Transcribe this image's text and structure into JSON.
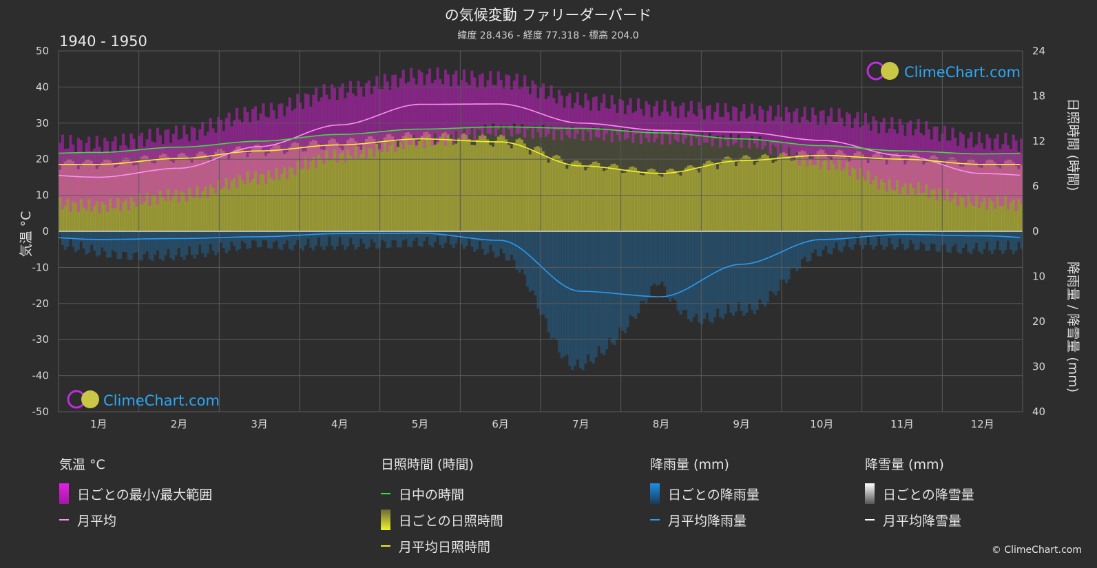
{
  "title": "の気候変動 ファリーダーバード",
  "subtitle": "緯度 28.436 - 経度 77.318 - 標高 204.0",
  "period": "1940 - 1950",
  "axes": {
    "left_label": "気温 °C",
    "right_top_label": "日照時間 (時間)",
    "right_bottom_label": "降雨量 / 降雪量 (mm)",
    "left_ticks": [
      "50",
      "40",
      "30",
      "20",
      "10",
      "0",
      "-10",
      "-20",
      "-30",
      "-40",
      "-50"
    ],
    "right_top_ticks": [
      "24",
      "18",
      "12",
      "6",
      "0"
    ],
    "right_bottom_ticks": [
      "10",
      "20",
      "30",
      "40"
    ]
  },
  "months": [
    "1月",
    "2月",
    "3月",
    "4月",
    "5月",
    "6月",
    "7月",
    "8月",
    "9月",
    "10月",
    "11月",
    "12月"
  ],
  "logo_text": "ClimeChart.com",
  "copyright": "© ClimeChart.com",
  "colors": {
    "background": "#2d2d2d",
    "temp_range": "#e51fe5",
    "temp_avg": "#ff8ff0",
    "daylight": "#3ddc3d",
    "sunshine_fill": "#b5b53a",
    "sunshine_avg": "#f2f22a",
    "rain": "#1e8ee6",
    "rain_avg": "#2b9af0",
    "snow": "#ffffff",
    "accent": "#2ba8f5"
  },
  "legend": {
    "temp": {
      "header": "気温 °C",
      "items": [
        "日ごとの最小/最大範囲",
        "月平均"
      ]
    },
    "sun": {
      "header": "日照時間 (時間)",
      "items": [
        "日中の時間",
        "日ごとの日照時間",
        "月平均日照時間"
      ]
    },
    "rain": {
      "header": "降雨量 (mm)",
      "items": [
        "日ごとの降雨量",
        "月平均降雨量"
      ]
    },
    "snow": {
      "header": "降雪量 (mm)",
      "items": [
        "日ごとの降雪量",
        "月平均降雪量"
      ]
    }
  },
  "chart_data": {
    "type": "area",
    "categories": [
      "1月",
      "2月",
      "3月",
      "4月",
      "5月",
      "6月",
      "7月",
      "8月",
      "9月",
      "10月",
      "11月",
      "12月"
    ],
    "temp_ylim": [
      -50,
      50
    ],
    "sun_ylim": [
      0,
      24
    ],
    "precip_ylim": [
      0,
      40
    ],
    "series": [
      {
        "name": "日ごとの最小/最大範囲 (最大)",
        "values": [
          24,
          27,
          33,
          39,
          43,
          42,
          36,
          34,
          33,
          32,
          29,
          25
        ]
      },
      {
        "name": "日ごとの最小/最大範囲 (最小)",
        "values": [
          7,
          10,
          15,
          21,
          25,
          28,
          27,
          26,
          25,
          19,
          12,
          8
        ]
      },
      {
        "name": "月平均",
        "values": [
          15,
          17.5,
          23.5,
          29.5,
          35.2,
          35.3,
          30,
          28,
          27.5,
          25.2,
          21,
          16
        ]
      },
      {
        "name": "日中の時間",
        "values": [
          10.5,
          11.2,
          12,
          12.9,
          13.6,
          13.9,
          13.7,
          13.1,
          12.3,
          11.4,
          10.7,
          10.3
        ]
      },
      {
        "name": "月平均日照時間",
        "values": [
          8.9,
          9.7,
          10.7,
          11.5,
          12.3,
          11.9,
          8.7,
          7.7,
          9.4,
          10.1,
          9.6,
          8.9
        ]
      },
      {
        "name": "月平均降雨量",
        "values": [
          1.8,
          1.6,
          1.2,
          0.5,
          0.4,
          2.0,
          13.3,
          14.5,
          7.3,
          1.8,
          0.7,
          1.0
        ]
      },
      {
        "name": "月平均降雪量",
        "values": [
          0,
          0,
          0,
          0,
          0,
          0,
          0,
          0,
          0,
          0,
          0,
          0
        ]
      }
    ]
  }
}
